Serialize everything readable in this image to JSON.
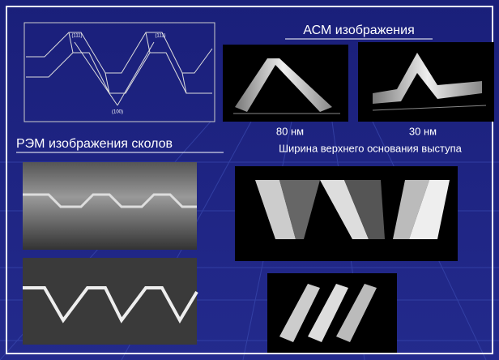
{
  "header": {
    "title": "АСМ изображения"
  },
  "diagram": {
    "labels": [
      "(111)",
      "(111)",
      "(100)"
    ]
  },
  "afm_images": [
    {
      "caption": "80 нм"
    },
    {
      "caption": "30 нм"
    }
  ],
  "afm_caption": "Ширина верхнего основания выступа",
  "sem_title": "РЭМ изображения сколов"
}
